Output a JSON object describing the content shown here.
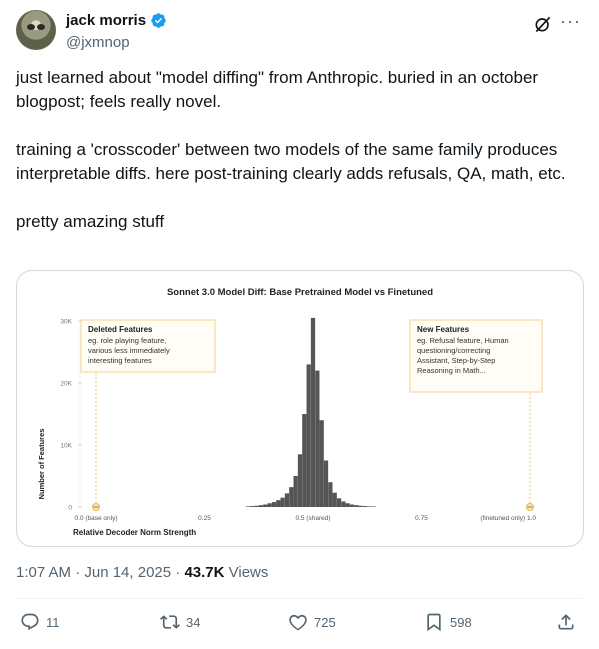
{
  "tweet": {
    "author": {
      "name": "jack morris",
      "handle": "@jxmnop"
    },
    "paragraphs": [
      "just learned about \"model diffing\" from Anthropic. buried in an october blogpost; feels really novel.",
      "training a 'crosscoder' between two models of the same family produces interpretable diffs.  here post-training clearly adds refusals, QA, math, etc.",
      "pretty amazing stuff"
    ],
    "timestamp": "1:07 AM · Jun 14, 2025",
    "separator": " · ",
    "views_count": "43.7K",
    "views_label": " Views"
  },
  "actions": {
    "replies": "11",
    "reposts": "34",
    "likes": "725",
    "bookmarks": "598"
  },
  "chart_data": {
    "type": "bar",
    "title": "Sonnet 3.0 Model Diff:  Base Pretrained Model vs Finetuned",
    "xlabel": "Relative Decoder Norm Strength",
    "ylabel": "Number of Features",
    "xlim": [
      0,
      1
    ],
    "ylim": [
      0,
      30000
    ],
    "yticks": [
      {
        "value": 0,
        "label": "0"
      },
      {
        "value": 10000,
        "label": "10K"
      },
      {
        "value": 20000,
        "label": "20K"
      },
      {
        "value": 30000,
        "label": "30K"
      }
    ],
    "xticks": [
      {
        "value": 0,
        "label": "0.0 (base only)"
      },
      {
        "value": 0.25,
        "label": "0.25"
      },
      {
        "value": 0.5,
        "label": "0.5 (shared)"
      },
      {
        "value": 0.75,
        "label": "0.75"
      },
      {
        "value": 1.0,
        "label": "(finetuned only)  1.0"
      }
    ],
    "bins": [
      {
        "x": 0.35,
        "y": 100
      },
      {
        "x": 0.36,
        "y": 150
      },
      {
        "x": 0.37,
        "y": 200
      },
      {
        "x": 0.38,
        "y": 300
      },
      {
        "x": 0.39,
        "y": 400
      },
      {
        "x": 0.4,
        "y": 600
      },
      {
        "x": 0.41,
        "y": 800
      },
      {
        "x": 0.42,
        "y": 1100
      },
      {
        "x": 0.43,
        "y": 1500
      },
      {
        "x": 0.44,
        "y": 2200
      },
      {
        "x": 0.45,
        "y": 3200
      },
      {
        "x": 0.46,
        "y": 5000
      },
      {
        "x": 0.47,
        "y": 8500
      },
      {
        "x": 0.48,
        "y": 15000
      },
      {
        "x": 0.49,
        "y": 23000
      },
      {
        "x": 0.5,
        "y": 30500
      },
      {
        "x": 0.51,
        "y": 22000
      },
      {
        "x": 0.52,
        "y": 14000
      },
      {
        "x": 0.53,
        "y": 7500
      },
      {
        "x": 0.54,
        "y": 4000
      },
      {
        "x": 0.55,
        "y": 2300
      },
      {
        "x": 0.56,
        "y": 1400
      },
      {
        "x": 0.57,
        "y": 900
      },
      {
        "x": 0.58,
        "y": 600
      },
      {
        "x": 0.59,
        "y": 400
      },
      {
        "x": 0.6,
        "y": 300
      },
      {
        "x": 0.61,
        "y": 200
      },
      {
        "x": 0.62,
        "y": 150
      },
      {
        "x": 0.63,
        "y": 100
      },
      {
        "x": 0.64,
        "y": 80
      }
    ],
    "annotations": {
      "deleted": {
        "title": "Deleted Features",
        "lines": [
          "eg. role playing feature,",
          "various less immediately",
          "interesting features"
        ]
      },
      "new": {
        "title": "New Features",
        "lines": [
          "eg. Refusal feature, Human",
          "questioning/correcting",
          "Assistant, Step-by-Step",
          "Reasoning in Math..."
        ]
      }
    },
    "colors": {
      "bar": "#555555",
      "callout_border": "#f3d58a",
      "callout_bg": "#fffdf5",
      "marker": "#e9b94a"
    }
  }
}
